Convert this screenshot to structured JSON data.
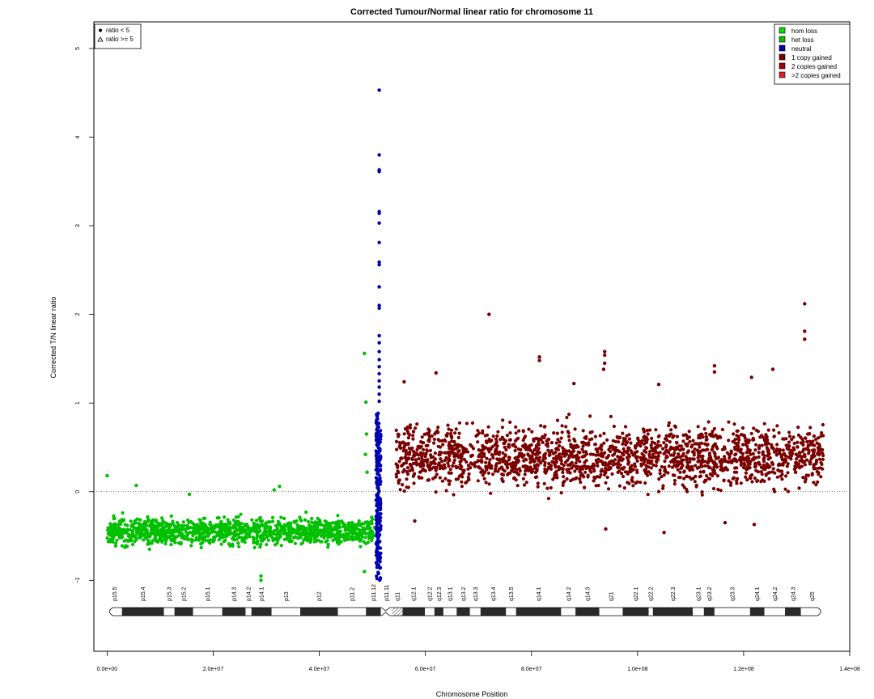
{
  "chart_data": {
    "type": "scatter",
    "title": "Corrected Tumour/Normal linear ratio for chromosome  11",
    "xlabel": "Chromosome Position",
    "ylabel": "Corrected T/N linear ratio",
    "xlim": [
      -2500000,
      140000000
    ],
    "ylim": [
      -1.8,
      5.3
    ],
    "x_ticks": [
      0,
      20000000,
      40000000,
      60000000,
      80000000,
      100000000,
      120000000,
      140000000
    ],
    "x_tick_labels": [
      "0.0e+00",
      "2.0e+07",
      "4.0e+07",
      "6.0e+07",
      "8.0e+07",
      "1.0e+08",
      "1.2e+08",
      "1.4e+08"
    ],
    "y_ticks": [
      -1,
      0,
      1,
      2,
      3,
      4,
      5
    ],
    "y_tick_labels": [
      "−1",
      "0",
      "1",
      "2",
      "3",
      "4",
      "5"
    ],
    "reference_line": {
      "y": 0,
      "style": "dotted"
    },
    "shape_legend": {
      "placement": "top-left",
      "entries": [
        {
          "label": "ratio < 5",
          "symbol": "filled-circle"
        },
        {
          "label": "ratio >= 5",
          "symbol": "open-triangle"
        }
      ]
    },
    "color_legend": {
      "placement": "top-right",
      "entries": [
        {
          "label": "hom loss",
          "color": "#00dd00"
        },
        {
          "label": "het loss",
          "color": "#00c000"
        },
        {
          "label": "neutral",
          "color": "#0000b0"
        },
        {
          "label": "1 copy gained",
          "color": "#7a0000"
        },
        {
          "label": "2 copies gained",
          "color": "#a00000"
        },
        {
          "label": ">2 copies gained",
          "color": "#e02020"
        }
      ]
    },
    "series": [
      {
        "name": "het loss",
        "color": "#00c000",
        "x_range": [
          0,
          50500000
        ],
        "y_band": [
          -0.72,
          -0.2
        ],
        "y_center": -0.45
      },
      {
        "name": "neutral",
        "color": "#0000b0",
        "x_range": [
          50700000,
          51600000
        ],
        "y_band": [
          -1.0,
          0.9
        ],
        "y_center": 0.1
      },
      {
        "name": "1 copy gained",
        "color": "#7a0000",
        "x_range": [
          54500000,
          135000000
        ],
        "y_band": [
          -0.2,
          1.0
        ],
        "y_center": 0.4
      }
    ],
    "outliers": [
      {
        "series": "het loss",
        "x": 0,
        "y": 0.18
      },
      {
        "series": "het loss",
        "x": 5500000,
        "y": 0.07
      },
      {
        "series": "het loss",
        "x": 15500000,
        "y": -0.03
      },
      {
        "series": "het loss",
        "x": 31500000,
        "y": 0.02
      },
      {
        "series": "het loss",
        "x": 32500000,
        "y": 0.06
      },
      {
        "series": "het loss",
        "x": 29000000,
        "y": -0.95
      },
      {
        "series": "het loss",
        "x": 29000000,
        "y": -1.0
      },
      {
        "series": "het loss",
        "x": 48500000,
        "y": 1.56
      },
      {
        "series": "het loss",
        "x": 48800000,
        "y": 1.01
      },
      {
        "series": "het loss",
        "x": 48900000,
        "y": 0.65
      },
      {
        "series": "het loss",
        "x": 48700000,
        "y": 0.42
      },
      {
        "series": "het loss",
        "x": 49000000,
        "y": 0.22
      },
      {
        "series": "het loss",
        "x": 48500000,
        "y": -0.9
      },
      {
        "series": "neutral",
        "x": 51300000,
        "y": 4.53
      },
      {
        "series": "neutral",
        "x": 51300000,
        "y": 3.8
      },
      {
        "series": "neutral",
        "x": 51300000,
        "y": 3.63
      },
      {
        "series": "neutral",
        "x": 51300000,
        "y": 3.61
      },
      {
        "series": "neutral",
        "x": 51300000,
        "y": 3.16
      },
      {
        "series": "neutral",
        "x": 51300000,
        "y": 3.14
      },
      {
        "series": "neutral",
        "x": 51300000,
        "y": 3.03
      },
      {
        "series": "neutral",
        "x": 51300000,
        "y": 2.81
      },
      {
        "series": "neutral",
        "x": 51300000,
        "y": 2.59
      },
      {
        "series": "neutral",
        "x": 51300000,
        "y": 2.56
      },
      {
        "series": "neutral",
        "x": 51300000,
        "y": 2.31
      },
      {
        "series": "neutral",
        "x": 51300000,
        "y": 2.1
      },
      {
        "series": "neutral",
        "x": 51300000,
        "y": 2.07
      },
      {
        "series": "neutral",
        "x": 51300000,
        "y": 1.76
      },
      {
        "series": "neutral",
        "x": 51300000,
        "y": 1.68
      },
      {
        "series": "neutral",
        "x": 51300000,
        "y": 1.58
      },
      {
        "series": "neutral",
        "x": 51300000,
        "y": 1.49
      },
      {
        "series": "neutral",
        "x": 51300000,
        "y": 1.41
      },
      {
        "series": "neutral",
        "x": 51300000,
        "y": 1.33
      },
      {
        "series": "neutral",
        "x": 51300000,
        "y": 1.25
      },
      {
        "series": "neutral",
        "x": 51300000,
        "y": 1.18
      },
      {
        "series": "neutral",
        "x": 51300000,
        "y": 1.1
      },
      {
        "series": "neutral",
        "x": 51300000,
        "y": 1.02
      },
      {
        "series": "1 copy gained",
        "x": 72000000,
        "y": 2.0
      },
      {
        "series": "1 copy gained",
        "x": 81500000,
        "y": 1.52
      },
      {
        "series": "1 copy gained",
        "x": 81500000,
        "y": 1.48
      },
      {
        "series": "1 copy gained",
        "x": 93800000,
        "y": 1.58
      },
      {
        "series": "1 copy gained",
        "x": 93800000,
        "y": 1.54
      },
      {
        "series": "1 copy gained",
        "x": 93800000,
        "y": 1.45
      },
      {
        "series": "1 copy gained",
        "x": 93600000,
        "y": 1.38
      },
      {
        "series": "1 copy gained",
        "x": 114500000,
        "y": 1.42
      },
      {
        "series": "1 copy gained",
        "x": 114500000,
        "y": 1.35
      },
      {
        "series": "1 copy gained",
        "x": 125500000,
        "y": 1.38
      },
      {
        "series": "1 copy gained",
        "x": 121500000,
        "y": 1.29
      },
      {
        "series": "1 copy gained",
        "x": 131500000,
        "y": 2.12
      },
      {
        "series": "1 copy gained",
        "x": 131500000,
        "y": 1.81
      },
      {
        "series": "1 copy gained",
        "x": 131500000,
        "y": 1.72
      },
      {
        "series": "1 copy gained",
        "x": 62000000,
        "y": 1.34
      },
      {
        "series": "1 copy gained",
        "x": 56000000,
        "y": 1.24
      },
      {
        "series": "1 copy gained",
        "x": 104000000,
        "y": 1.21
      },
      {
        "series": "1 copy gained",
        "x": 88000000,
        "y": 1.22
      },
      {
        "series": "1 copy gained",
        "x": 94000000,
        "y": -0.42
      },
      {
        "series": "1 copy gained",
        "x": 105000000,
        "y": -0.46
      },
      {
        "series": "1 copy gained",
        "x": 122000000,
        "y": -0.37
      },
      {
        "series": "1 copy gained",
        "x": 116500000,
        "y": -0.35
      },
      {
        "series": "1 copy gained",
        "x": 58000000,
        "y": -0.33
      }
    ],
    "ideogram": {
      "length": 135000000,
      "centromere": 52500000,
      "bands": [
        {
          "name": "p15.5",
          "start": 0,
          "end": 2800000,
          "stain": "gneg"
        },
        {
          "name": "p15.4",
          "start": 2800000,
          "end": 10700000,
          "stain": "gpos"
        },
        {
          "name": "p15.3",
          "start": 10700000,
          "end": 12700000,
          "stain": "gneg"
        },
        {
          "name": "p15.2",
          "start": 12700000,
          "end": 16200000,
          "stain": "gpos"
        },
        {
          "name": "p15.1",
          "start": 16200000,
          "end": 21700000,
          "stain": "gneg"
        },
        {
          "name": "p14.3",
          "start": 21700000,
          "end": 26100000,
          "stain": "gpos"
        },
        {
          "name": "p14.2",
          "start": 26100000,
          "end": 27200000,
          "stain": "gneg"
        },
        {
          "name": "p14.1",
          "start": 27200000,
          "end": 31000000,
          "stain": "gpos"
        },
        {
          "name": "p13",
          "start": 31000000,
          "end": 36400000,
          "stain": "gneg"
        },
        {
          "name": "p12",
          "start": 36400000,
          "end": 43500000,
          "stain": "gpos"
        },
        {
          "name": "p11.2",
          "start": 43500000,
          "end": 48800000,
          "stain": "gneg"
        },
        {
          "name": "p11.12",
          "start": 48800000,
          "end": 51600000,
          "stain": "gpos"
        },
        {
          "name": "p11.11",
          "start": 51600000,
          "end": 53700000,
          "stain": "acen"
        },
        {
          "name": "q11",
          "start": 53700000,
          "end": 55700000,
          "stain": "stalk"
        },
        {
          "name": "q12.1",
          "start": 55700000,
          "end": 59900000,
          "stain": "gpos"
        },
        {
          "name": "q12.2",
          "start": 59900000,
          "end": 61700000,
          "stain": "gneg"
        },
        {
          "name": "q12.3",
          "start": 61700000,
          "end": 63400000,
          "stain": "gpos"
        },
        {
          "name": "q13.1",
          "start": 63400000,
          "end": 65900000,
          "stain": "gneg"
        },
        {
          "name": "q13.2",
          "start": 65900000,
          "end": 68400000,
          "stain": "gpos"
        },
        {
          "name": "q13.3",
          "start": 68400000,
          "end": 70400000,
          "stain": "gneg"
        },
        {
          "name": "q13.4",
          "start": 70400000,
          "end": 75200000,
          "stain": "gpos"
        },
        {
          "name": "q13.5",
          "start": 75200000,
          "end": 77100000,
          "stain": "gneg"
        },
        {
          "name": "q14.1",
          "start": 77100000,
          "end": 85600000,
          "stain": "gpos"
        },
        {
          "name": "q14.2",
          "start": 85600000,
          "end": 88300000,
          "stain": "gneg"
        },
        {
          "name": "q14.3",
          "start": 88300000,
          "end": 92800000,
          "stain": "gpos"
        },
        {
          "name": "q21",
          "start": 92800000,
          "end": 97200000,
          "stain": "gneg"
        },
        {
          "name": "q22.1",
          "start": 97200000,
          "end": 102100000,
          "stain": "gpos"
        },
        {
          "name": "q22.2",
          "start": 102100000,
          "end": 102900000,
          "stain": "gneg"
        },
        {
          "name": "q22.3",
          "start": 102900000,
          "end": 110400000,
          "stain": "gpos"
        },
        {
          "name": "q23.1",
          "start": 110400000,
          "end": 112500000,
          "stain": "gneg"
        },
        {
          "name": "q23.2",
          "start": 112500000,
          "end": 114500000,
          "stain": "gpos"
        },
        {
          "name": "q23.3",
          "start": 114500000,
          "end": 121200000,
          "stain": "gneg"
        },
        {
          "name": "q24.1",
          "start": 121200000,
          "end": 123900000,
          "stain": "gpos"
        },
        {
          "name": "q24.2",
          "start": 123900000,
          "end": 127800000,
          "stain": "gneg"
        },
        {
          "name": "q24.3",
          "start": 127800000,
          "end": 130800000,
          "stain": "gpos"
        },
        {
          "name": "q25",
          "start": 130800000,
          "end": 135000000,
          "stain": "gneg"
        }
      ]
    }
  }
}
